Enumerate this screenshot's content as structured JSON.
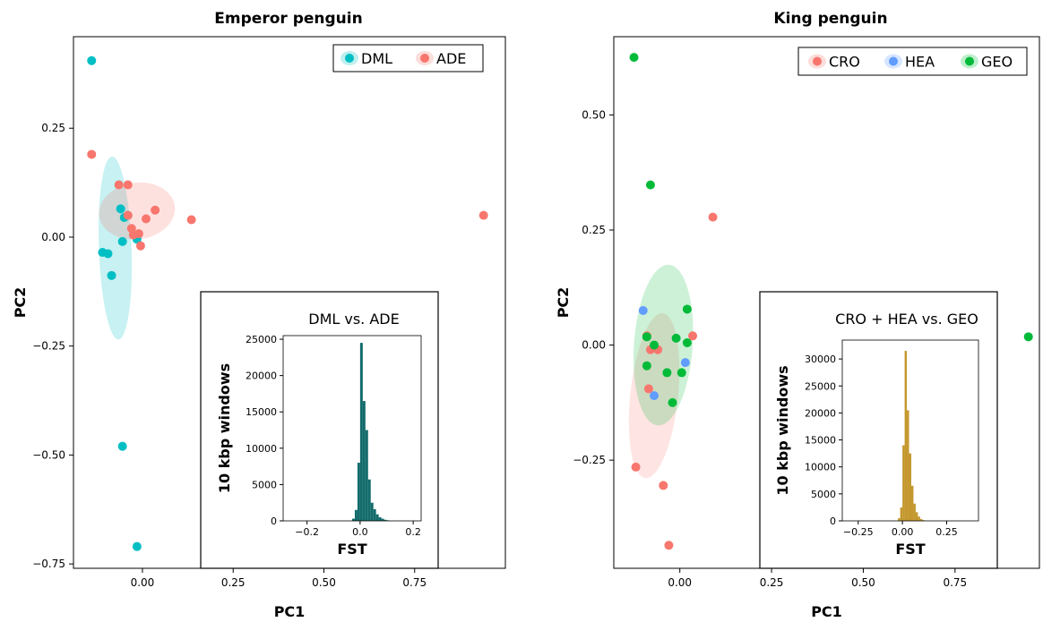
{
  "chart_data": [
    {
      "type": "scatter",
      "title": "Emperor penguin",
      "xlabel": "PC1",
      "ylabel": "PC2",
      "xlim": [
        -0.19,
        1.0
      ],
      "ylim": [
        -0.76,
        0.46
      ],
      "xticks": [
        "0.00",
        "0.25",
        "0.50",
        "0.75"
      ],
      "yticks": [
        "0.25",
        "0.00",
        "−0.25",
        "−0.50",
        "−0.75"
      ],
      "legend_position": "top-right",
      "series": [
        {
          "name": "DML",
          "color": "#00BFC4",
          "points": [
            [
              -0.14,
              0.405
            ],
            [
              -0.06,
              0.065
            ],
            [
              -0.05,
              0.045
            ],
            [
              -0.04,
              0.05
            ],
            [
              -0.055,
              -0.01
            ],
            [
              -0.11,
              -0.035
            ],
            [
              -0.095,
              -0.038
            ],
            [
              -0.085,
              -0.088
            ],
            [
              -0.015,
              -0.005
            ],
            [
              -0.055,
              -0.48
            ],
            [
              -0.015,
              -0.71
            ]
          ]
        },
        {
          "name": "ADE",
          "color": "#F8766D",
          "points": [
            [
              -0.14,
              0.19
            ],
            [
              -0.065,
              0.12
            ],
            [
              -0.04,
              0.12
            ],
            [
              -0.04,
              0.05
            ],
            [
              -0.03,
              0.02
            ],
            [
              -0.025,
              0.005
            ],
            [
              -0.01,
              0.008
            ],
            [
              -0.005,
              -0.02
            ],
            [
              0.01,
              0.042
            ],
            [
              0.035,
              0.062
            ],
            [
              0.135,
              0.04
            ],
            [
              0.94,
              0.05
            ]
          ]
        }
      ],
      "inset": {
        "type": "bar",
        "title": "DML vs. ADE",
        "xlabel": "FST",
        "ylabel": "10 kbp windows",
        "color": "#136B6B",
        "xlim": [
          -0.29,
          0.23
        ],
        "ylim": [
          0,
          25500
        ],
        "xticks": [
          "−0.2",
          "0.0",
          "0.2"
        ],
        "yticks": [
          "0",
          "5000",
          "10000",
          "15000",
          "20000",
          "25000"
        ],
        "bin_width": 0.01,
        "bins": [
          -0.03,
          -0.02,
          -0.01,
          0.0,
          0.01,
          0.02,
          0.03,
          0.04,
          0.05,
          0.06,
          0.07,
          0.08,
          0.09,
          0.1
        ],
        "values": [
          300,
          1500,
          8000,
          24500,
          16500,
          12500,
          5700,
          2500,
          1600,
          900,
          500,
          300,
          150,
          80
        ]
      }
    },
    {
      "type": "scatter",
      "title": "King penguin",
      "xlabel": "PC1",
      "ylabel": "PC2",
      "xlim": [
        -0.18,
        0.98
      ],
      "ylim": [
        -0.485,
        0.67
      ],
      "xticks": [
        "0.00",
        "0.25",
        "0.50",
        "0.75"
      ],
      "yticks": [
        "0.50",
        "0.25",
        "0.00",
        "−0.25"
      ],
      "legend_position": "top-right",
      "series": [
        {
          "name": "CRO",
          "color": "#F8766D",
          "points": [
            [
              0.09,
              0.278
            ],
            [
              -0.09,
              0.02
            ],
            [
              -0.08,
              -0.01
            ],
            [
              -0.06,
              -0.01
            ],
            [
              0.035,
              0.02
            ],
            [
              -0.085,
              -0.095
            ],
            [
              -0.12,
              -0.265
            ],
            [
              -0.045,
              -0.305
            ],
            [
              -0.03,
              -0.435
            ]
          ]
        },
        {
          "name": "HEA",
          "color": "#619CFF",
          "points": [
            [
              -0.1,
              0.075
            ],
            [
              -0.07,
              -0.11
            ],
            [
              0.015,
              -0.038
            ]
          ]
        },
        {
          "name": "GEO",
          "color": "#00BA38",
          "points": [
            [
              -0.125,
              0.625
            ],
            [
              -0.08,
              0.348
            ],
            [
              0.02,
              0.078
            ],
            [
              -0.09,
              0.018
            ],
            [
              -0.07,
              0.0
            ],
            [
              -0.01,
              0.015
            ],
            [
              0.02,
              0.005
            ],
            [
              -0.09,
              -0.045
            ],
            [
              -0.035,
              -0.06
            ],
            [
              0.005,
              -0.06
            ],
            [
              -0.02,
              -0.125
            ],
            [
              0.95,
              0.018
            ]
          ]
        }
      ],
      "inset": {
        "type": "bar",
        "title": "CRO + HEA vs. GEO",
        "xlabel": "FST",
        "ylabel": "10 kbp windows",
        "color": "#C4982E",
        "xlim": [
          -0.34,
          0.43
        ],
        "ylim": [
          0,
          33500
        ],
        "xticks": [
          "−0.25",
          "0.00",
          "0.25"
        ],
        "yticks": [
          "0",
          "5000",
          "10000",
          "15000",
          "20000",
          "25000",
          "30000"
        ],
        "bin_width": 0.0125,
        "bins": [
          -0.025,
          -0.0125,
          0.0,
          0.0125,
          0.025,
          0.0375,
          0.05,
          0.0625,
          0.075,
          0.0875,
          0.1,
          0.1125
        ],
        "values": [
          500,
          2500,
          14000,
          31500,
          20500,
          12500,
          6500,
          3200,
          1600,
          800,
          350,
          150
        ]
      }
    }
  ]
}
